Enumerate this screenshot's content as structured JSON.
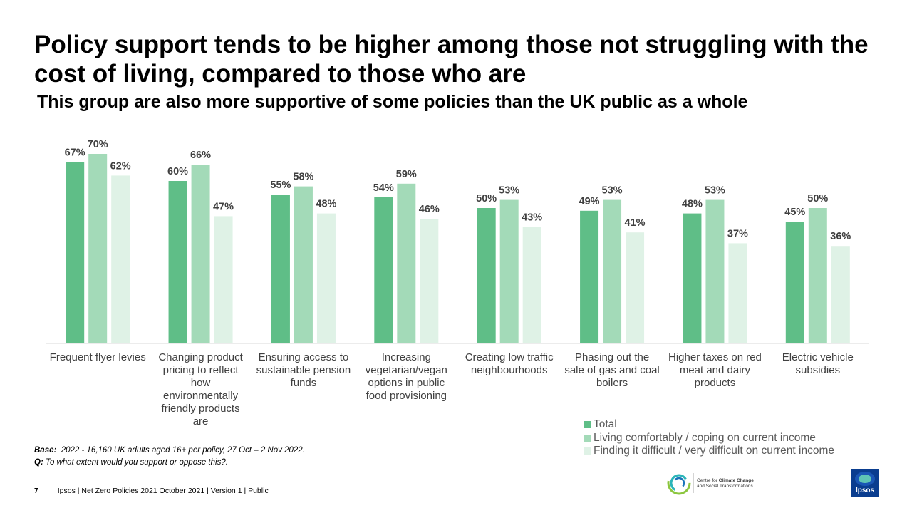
{
  "title": "Policy support tends to be higher among those not struggling with the cost of living, compared to those who are",
  "subtitle": "This group are also more supportive of some policies than the UK public as a whole",
  "chart_data": {
    "type": "bar",
    "categories": [
      [
        "Frequent flyer levies"
      ],
      [
        "Changing product",
        "pricing to reflect",
        "how",
        "environmentally",
        "friendly products",
        "are"
      ],
      [
        "Ensuring access to",
        "sustainable pension",
        "funds"
      ],
      [
        "Increasing",
        "vegetarian/vegan",
        "options in public",
        "food provisioning"
      ],
      [
        "Creating low traffic",
        "neighbourhoods"
      ],
      [
        "Phasing out the",
        "sale of gas and coal",
        "boilers"
      ],
      [
        "Higher taxes on red",
        "meat and dairy",
        "products"
      ],
      [
        "Electric vehicle",
        "subsidies"
      ]
    ],
    "series": [
      {
        "name": "Total",
        "color": "#5fbe87",
        "values": [
          67,
          60,
          55,
          54,
          50,
          49,
          48,
          45
        ]
      },
      {
        "name": "Living comfortably / coping on current income",
        "color": "#a3dab8",
        "values": [
          70,
          66,
          58,
          59,
          53,
          53,
          53,
          50
        ]
      },
      {
        "name": "Finding it difficult / very difficult on current income",
        "color": "#dff2e6",
        "values": [
          62,
          47,
          48,
          46,
          43,
          41,
          37,
          36
        ]
      }
    ],
    "value_suffix": "%",
    "ylim": [
      0,
      70
    ],
    "grid": false,
    "legend_position": "bottom-right"
  },
  "footnote": {
    "base_label": "Base:",
    "base_text": "2022 - 16,160 UK adults aged 16+ per policy, 27 Oct – 2 Nov 2022.",
    "q_label": "Q:",
    "q_text": "To what extent would you support or oppose this?."
  },
  "footer": {
    "page_number": "7",
    "text": "Ipsos | Net Zero Policies 2021  October 2021 | Version 1 | Public"
  },
  "logos": {
    "cc_text_line1_a": "Centre for ",
    "cc_text_line1_b": "Climate Change",
    "cc_text_line2": "and Social Transformations",
    "ipsos_text": "Ipsos",
    "ipsos_color": "#0a3d8f"
  }
}
